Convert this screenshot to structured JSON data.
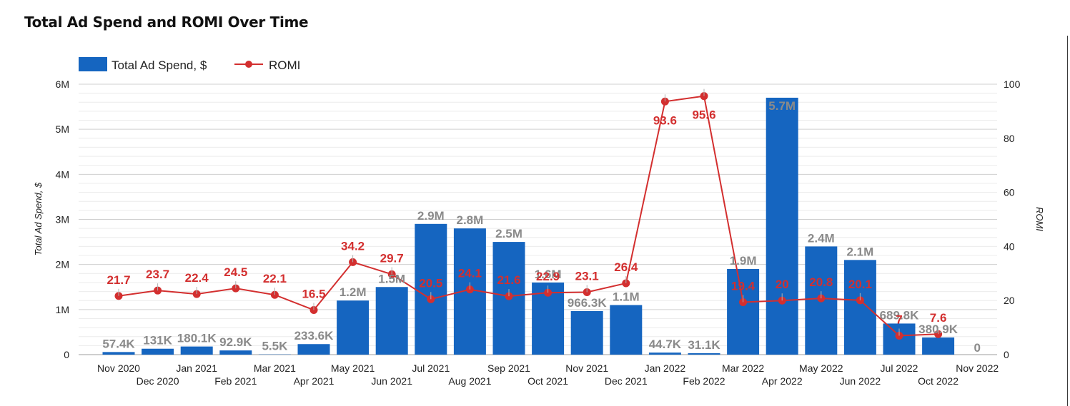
{
  "title": "Total Ad Spend and ROMI Over Time",
  "colors": {
    "bars": "#1565c0",
    "line": "#d32f2f",
    "bar_label": "#8a8a8a",
    "grid": "#dddddd"
  },
  "chart_data": {
    "type": "bar",
    "title": "Total Ad Spend and ROMI Over Time",
    "categories": [
      "Nov 2020",
      "Dec 2020",
      "Jan 2021",
      "Feb 2021",
      "Mar 2021",
      "Apr 2021",
      "May 2021",
      "Jun 2021",
      "Jul 2021",
      "Aug 2021",
      "Sep 2021",
      "Oct 2021",
      "Nov 2021",
      "Dec 2021",
      "Jan 2022",
      "Feb 2022",
      "Mar 2022",
      "Apr 2022",
      "May 2022",
      "Jun 2022",
      "Jul 2022",
      "Oct 2022",
      "Nov 2022"
    ],
    "series": [
      {
        "name": "Total Ad Spend, $",
        "type": "bar",
        "axis": "left",
        "values": [
          57400,
          131000,
          180100,
          92900,
          5500,
          233600,
          1200000,
          1500000,
          2900000,
          2800000,
          2500000,
          1600000,
          966300,
          1100000,
          44700,
          31100,
          1900000,
          5700000,
          2400000,
          2100000,
          689800,
          380900,
          0
        ],
        "labels": [
          "57.4K",
          "131K",
          "180.1K",
          "92.9K",
          "5.5K",
          "233.6K",
          "1.2M",
          "1.5M",
          "2.9M",
          "2.8M",
          "2.5M",
          "1.6M",
          "966.3K",
          "1.1M",
          "44.7K",
          "31.1K",
          "1.9M",
          "5.7M",
          "2.4M",
          "2.1M",
          "689.8K",
          "380.9K",
          "0"
        ]
      },
      {
        "name": "ROMI",
        "type": "line",
        "axis": "right",
        "values": [
          21.7,
          23.7,
          22.4,
          24.5,
          22.1,
          16.5,
          34.2,
          29.7,
          20.5,
          24.1,
          21.6,
          22.9,
          23.1,
          26.4,
          93.6,
          95.6,
          19.4,
          20,
          20.8,
          20.1,
          7,
          7.6,
          null
        ],
        "labels": [
          "21.7",
          "23.7",
          "22.4",
          "24.5",
          "22.1",
          "16.5",
          "34.2",
          "29.7",
          "20.5",
          "24.1",
          "21.6",
          "22.9",
          "23.1",
          "26.4",
          "93.6",
          "95.6",
          "19.4",
          "20",
          "20.8",
          "20.1",
          "7",
          "7.6",
          ""
        ]
      }
    ],
    "ylabel": "Total Ad Spend, $",
    "ylim": [
      0,
      6000000
    ],
    "yticks": [
      {
        "value": 0,
        "label": "0"
      },
      {
        "value": 1000000,
        "label": "1M"
      },
      {
        "value": 2000000,
        "label": "2M"
      },
      {
        "value": 3000000,
        "label": "3M"
      },
      {
        "value": 4000000,
        "label": "4M"
      },
      {
        "value": 5000000,
        "label": "5M"
      },
      {
        "value": 6000000,
        "label": "6M"
      }
    ],
    "y2label": "ROMI",
    "y2lim": [
      0,
      100
    ],
    "y2ticks": [
      {
        "value": 0,
        "label": "0"
      },
      {
        "value": 20,
        "label": "20"
      },
      {
        "value": 40,
        "label": "40"
      },
      {
        "value": 60,
        "label": "60"
      },
      {
        "value": 80,
        "label": "80"
      },
      {
        "value": 100,
        "label": "100"
      }
    ],
    "grid": true,
    "legend": "top-left"
  }
}
